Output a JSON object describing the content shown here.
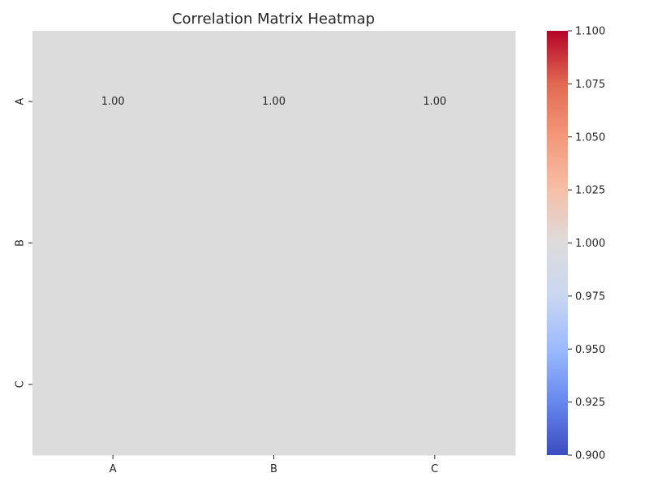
{
  "chart_data": {
    "type": "heatmap",
    "title": "Correlation Matrix Heatmap",
    "row_labels": [
      "A",
      "B",
      "C"
    ],
    "col_labels": [
      "A",
      "B",
      "C"
    ],
    "values": [
      [
        1.0,
        1.0,
        1.0
      ],
      [
        1.0,
        1.0,
        1.0
      ],
      [
        1.0,
        1.0,
        1.0
      ]
    ],
    "annotations": [
      [
        "1.00",
        "1.00",
        "1.00"
      ],
      [
        "",
        "",
        ""
      ],
      [
        "",
        "",
        ""
      ]
    ],
    "colormap": "coolwarm",
    "cell_color": "#dddcdc",
    "colorbar": {
      "range": [
        0.9,
        1.1
      ],
      "ticks": [
        "0.900",
        "0.925",
        "0.950",
        "0.975",
        "1.000",
        "1.025",
        "1.050",
        "1.075",
        "1.100"
      ],
      "stops": [
        "#3b4cc0",
        "#6788ee",
        "#9abbff",
        "#c9d7f0",
        "#dddcdc",
        "#f6bfa6",
        "#f4987a",
        "#e26952",
        "#b40426"
      ]
    }
  }
}
